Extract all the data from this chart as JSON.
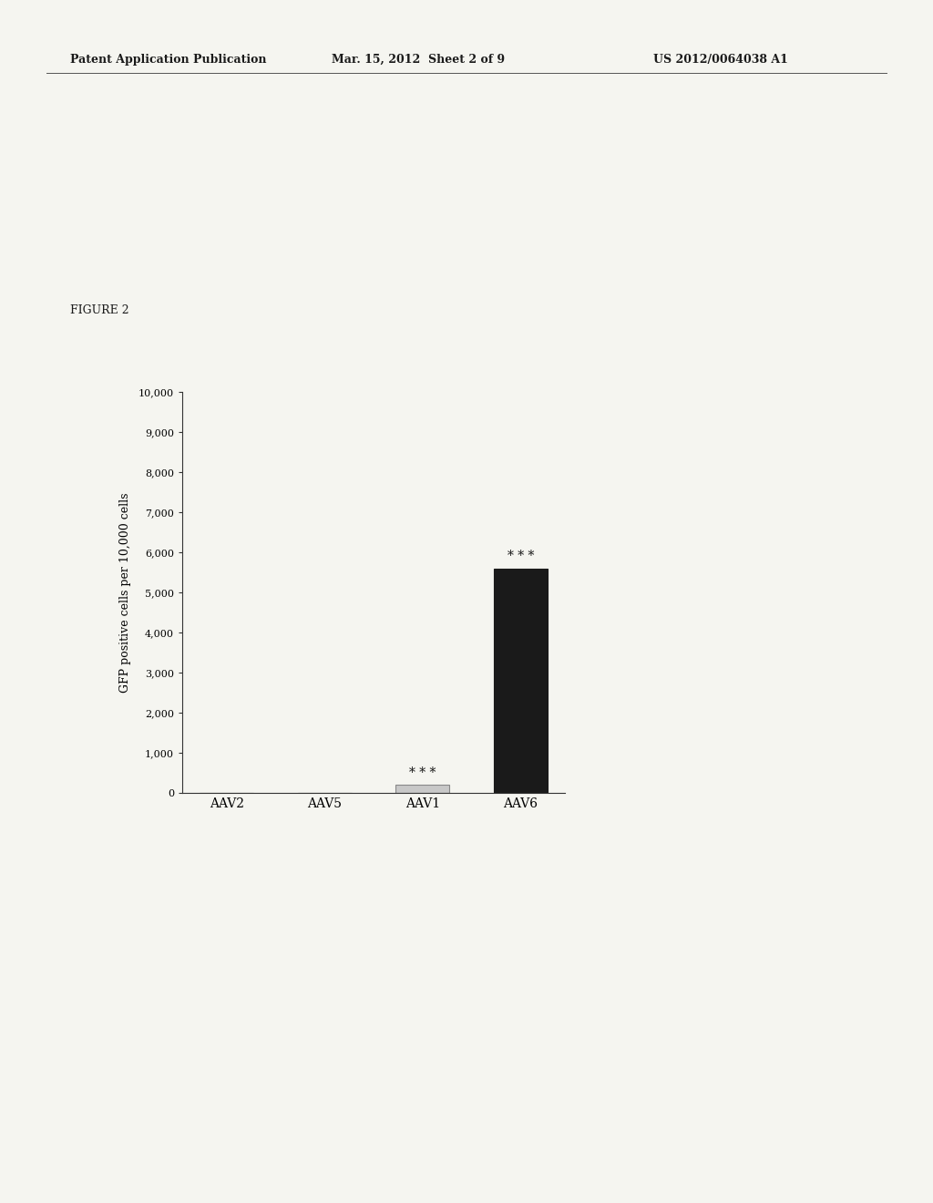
{
  "header_left": "Patent Application Publication",
  "header_mid": "Mar. 15, 2012  Sheet 2 of 9",
  "header_right": "US 2012/0064038 A1",
  "figure_label": "FIGURE 2",
  "categories": [
    "AAV2",
    "AAV5",
    "AAV1",
    "AAV6"
  ],
  "values": [
    0,
    0,
    200,
    5600
  ],
  "bar_colors": [
    "#1a1a1a",
    "#1a1a1a",
    "#c8c8c8",
    "#1a1a1a"
  ],
  "bar_edgecolors": [
    "#1a1a1a",
    "#1a1a1a",
    "#888888",
    "#1a1a1a"
  ],
  "ylabel": "GFP positive cells per 10,000 cells",
  "ylim": [
    0,
    10000
  ],
  "yticks": [
    0,
    1000,
    2000,
    3000,
    4000,
    5000,
    6000,
    7000,
    8000,
    9000,
    10000
  ],
  "ytick_labels": [
    "0",
    "1,000",
    "2,000",
    "3,000",
    "4,000",
    "5,000",
    "6,000",
    "7,000",
    "8,000",
    "9,000",
    "10,000"
  ],
  "significance_labels": [
    null,
    null,
    "* * *",
    "* * *"
  ],
  "background_color": "#f5f5f0",
  "bar_width": 0.55,
  "header_fontsize": 9,
  "figure_label_fontsize": 9,
  "ylabel_fontsize": 9,
  "tick_fontsize": 8,
  "xtick_fontsize": 10,
  "sig_fontsize": 10
}
